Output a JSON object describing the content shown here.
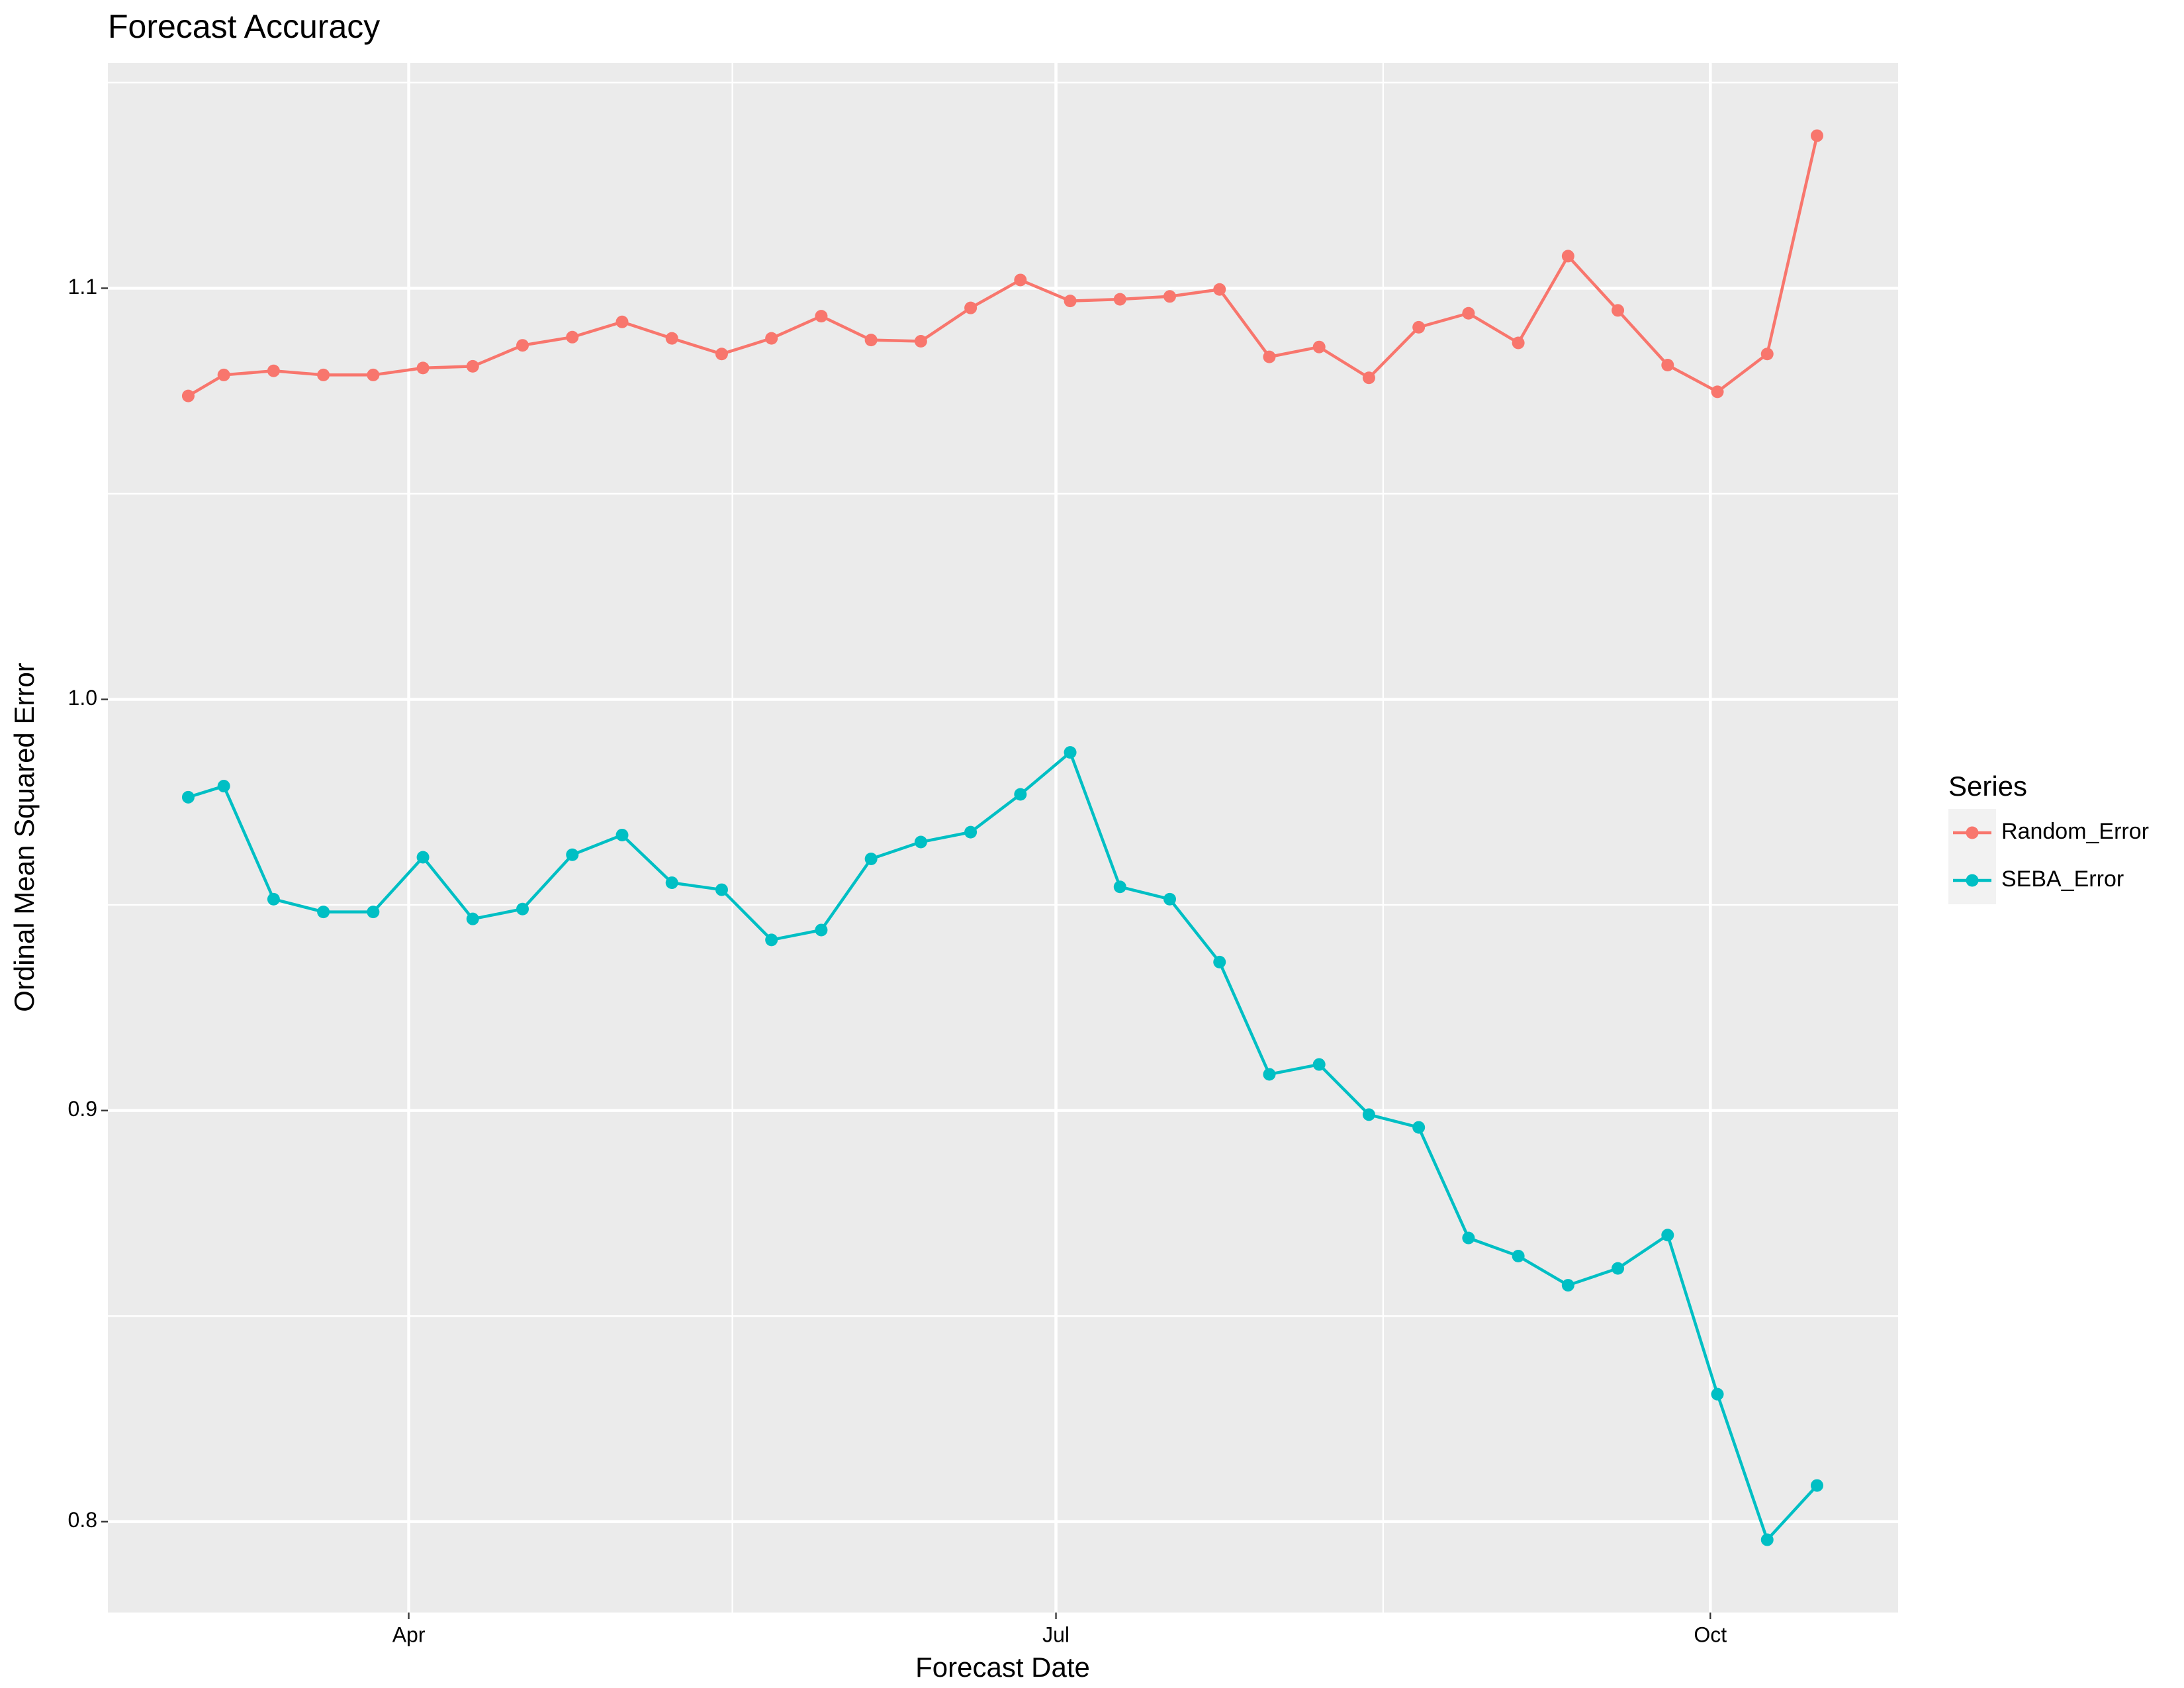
{
  "chart_data": {
    "type": "line",
    "title": "Forecast Accuracy",
    "x_label": "Forecast Date",
    "y_label": "Ordinal Mean Squared Error",
    "legend_title": "Series",
    "legend": "right",
    "grid": true,
    "x": [
      60,
      65,
      72,
      79,
      86,
      93,
      100,
      107,
      114,
      121,
      128,
      135,
      142,
      149,
      156,
      163,
      170,
      177,
      184,
      191,
      198,
      205,
      212,
      219,
      226,
      233,
      240,
      247,
      254,
      261,
      268,
      275,
      282,
      289
    ],
    "xlim": [
      48.7,
      300.4
    ],
    "xticks": [
      {
        "value": 91,
        "label": "Apr"
      },
      {
        "value": 182,
        "label": "Jul"
      },
      {
        "value": 274,
        "label": "Oct"
      }
    ],
    "ylim": [
      0.7779,
      1.1548
    ],
    "yticks": [
      {
        "value": 0.8,
        "label": "0.8"
      },
      {
        "value": 0.9,
        "label": "0.9"
      },
      {
        "value": 1.0,
        "label": "1.0"
      },
      {
        "value": 1.1,
        "label": "1.1"
      }
    ],
    "series": [
      {
        "name": "Random_Error",
        "color": "#F8766D",
        "values": [
          1.0738,
          1.0789,
          1.0799,
          1.0789,
          1.0789,
          1.0806,
          1.081,
          1.0861,
          1.0881,
          1.0918,
          1.0878,
          1.084,
          1.0878,
          1.0932,
          1.0874,
          1.0871,
          1.0952,
          1.102,
          1.0969,
          1.0973,
          1.098,
          1.0997,
          1.0833,
          1.0857,
          1.0782,
          1.0905,
          1.0939,
          1.0867,
          1.1078,
          1.0946,
          1.0813,
          1.0748,
          1.084,
          1.1371
        ]
      },
      {
        "name": "SEBA_Error",
        "color": "#00BFC4",
        "values": [
          0.9762,
          0.9789,
          0.9514,
          0.9483,
          0.9483,
          0.9616,
          0.9466,
          0.949,
          0.9622,
          0.967,
          0.9554,
          0.9537,
          0.9415,
          0.9439,
          0.9612,
          0.9653,
          0.9677,
          0.9769,
          0.9871,
          0.9544,
          0.9514,
          0.9361,
          0.9088,
          0.9112,
          0.899,
          0.8959,
          0.869,
          0.8646,
          0.8575,
          0.8616,
          0.8697,
          0.831,
          0.7956,
          0.8088
        ]
      }
    ]
  }
}
